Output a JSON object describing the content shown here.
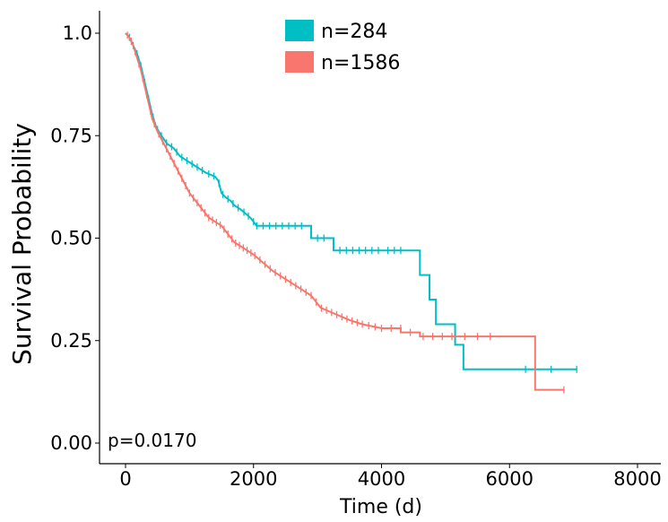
{
  "chart_data": {
    "type": "line",
    "xlabel": "Time (d)",
    "ylabel": "Survival Probability",
    "xlim": [
      -400,
      8300
    ],
    "ylim": [
      -0.05,
      1.05
    ],
    "x_ticks": [
      0,
      2000,
      4000,
      6000,
      8000
    ],
    "y_ticks": [
      {
        "value": 0,
        "label": "0.00"
      },
      {
        "value": 0.25,
        "label": "0.25"
      },
      {
        "value": 0.5,
        "label": "0.50"
      },
      {
        "value": 0.75,
        "label": "0.75"
      },
      {
        "value": 1.0,
        "label": "1.0"
      }
    ],
    "grid": false,
    "legend_position": "top",
    "annotation": "p=0.0170",
    "series": [
      {
        "name": "n=284",
        "color": "#00BFC4",
        "points": [
          [
            0,
            1.0
          ],
          [
            60,
            0.99
          ],
          [
            120,
            0.97
          ],
          [
            180,
            0.95
          ],
          [
            240,
            0.92
          ],
          [
            300,
            0.88
          ],
          [
            360,
            0.84
          ],
          [
            420,
            0.8
          ],
          [
            480,
            0.77
          ],
          [
            560,
            0.75
          ],
          [
            650,
            0.73
          ],
          [
            750,
            0.72
          ],
          [
            850,
            0.7
          ],
          [
            950,
            0.69
          ],
          [
            1050,
            0.68
          ],
          [
            1150,
            0.67
          ],
          [
            1250,
            0.66
          ],
          [
            1400,
            0.65
          ],
          [
            1450,
            0.64
          ],
          [
            1500,
            0.61
          ],
          [
            1560,
            0.6
          ],
          [
            1650,
            0.59
          ],
          [
            1700,
            0.58
          ],
          [
            1800,
            0.57
          ],
          [
            1950,
            0.55
          ],
          [
            2050,
            0.53
          ],
          [
            2900,
            0.53
          ],
          [
            2900,
            0.5
          ],
          [
            3250,
            0.5
          ],
          [
            3250,
            0.47
          ],
          [
            4600,
            0.47
          ],
          [
            4600,
            0.41
          ],
          [
            4750,
            0.41
          ],
          [
            4750,
            0.35
          ],
          [
            4850,
            0.35
          ],
          [
            4850,
            0.29
          ],
          [
            5150,
            0.29
          ],
          [
            5150,
            0.24
          ],
          [
            5280,
            0.24
          ],
          [
            5280,
            0.18
          ],
          [
            7050,
            0.18
          ]
        ],
        "censor_x": [
          60,
          120,
          180,
          240,
          300,
          360,
          430,
          500,
          560,
          640,
          720,
          800,
          880,
          960,
          1040,
          1120,
          1200,
          1300,
          1380,
          1460,
          1520,
          1600,
          1680,
          1760,
          1850,
          1920,
          2000,
          2050,
          2150,
          2250,
          2350,
          2450,
          2550,
          2650,
          2750,
          3000,
          3100,
          3350,
          3450,
          3550,
          3650,
          3750,
          3850,
          3950,
          4100,
          4200,
          4300,
          6250,
          6650,
          7050
        ]
      },
      {
        "name": "n=1586",
        "color": "#F8766D",
        "points": [
          [
            0,
            1.0
          ],
          [
            60,
            0.99
          ],
          [
            120,
            0.97
          ],
          [
            180,
            0.94
          ],
          [
            240,
            0.91
          ],
          [
            300,
            0.87
          ],
          [
            360,
            0.83
          ],
          [
            420,
            0.79
          ],
          [
            500,
            0.76
          ],
          [
            600,
            0.73
          ],
          [
            700,
            0.7
          ],
          [
            800,
            0.67
          ],
          [
            900,
            0.64
          ],
          [
            1000,
            0.61
          ],
          [
            1100,
            0.59
          ],
          [
            1200,
            0.57
          ],
          [
            1300,
            0.55
          ],
          [
            1400,
            0.54
          ],
          [
            1500,
            0.53
          ],
          [
            1600,
            0.51
          ],
          [
            1700,
            0.49
          ],
          [
            1800,
            0.48
          ],
          [
            1900,
            0.47
          ],
          [
            2000,
            0.46
          ],
          [
            2150,
            0.44
          ],
          [
            2300,
            0.42
          ],
          [
            2500,
            0.4
          ],
          [
            2700,
            0.38
          ],
          [
            2900,
            0.36
          ],
          [
            3050,
            0.33
          ],
          [
            3200,
            0.32
          ],
          [
            3350,
            0.31
          ],
          [
            3500,
            0.3
          ],
          [
            3700,
            0.29
          ],
          [
            4000,
            0.28
          ],
          [
            4300,
            0.28
          ],
          [
            4300,
            0.27
          ],
          [
            4600,
            0.27
          ],
          [
            4600,
            0.26
          ],
          [
            6400,
            0.26
          ],
          [
            6400,
            0.13
          ],
          [
            6850,
            0.13
          ]
        ],
        "censor_x": [
          30,
          90,
          150,
          210,
          270,
          330,
          390,
          450,
          520,
          580,
          640,
          700,
          760,
          820,
          880,
          940,
          1000,
          1060,
          1120,
          1180,
          1240,
          1300,
          1360,
          1420,
          1480,
          1540,
          1600,
          1660,
          1720,
          1780,
          1840,
          1900,
          1960,
          2020,
          2100,
          2180,
          2260,
          2340,
          2420,
          2500,
          2580,
          2660,
          2740,
          2820,
          2900,
          2980,
          3060,
          3140,
          3220,
          3300,
          3380,
          3460,
          3540,
          3620,
          3700,
          3800,
          3900,
          4000,
          4150,
          4300,
          4450,
          4650,
          4800,
          4950,
          5100,
          5300,
          5500,
          5700,
          6850
        ]
      }
    ]
  }
}
